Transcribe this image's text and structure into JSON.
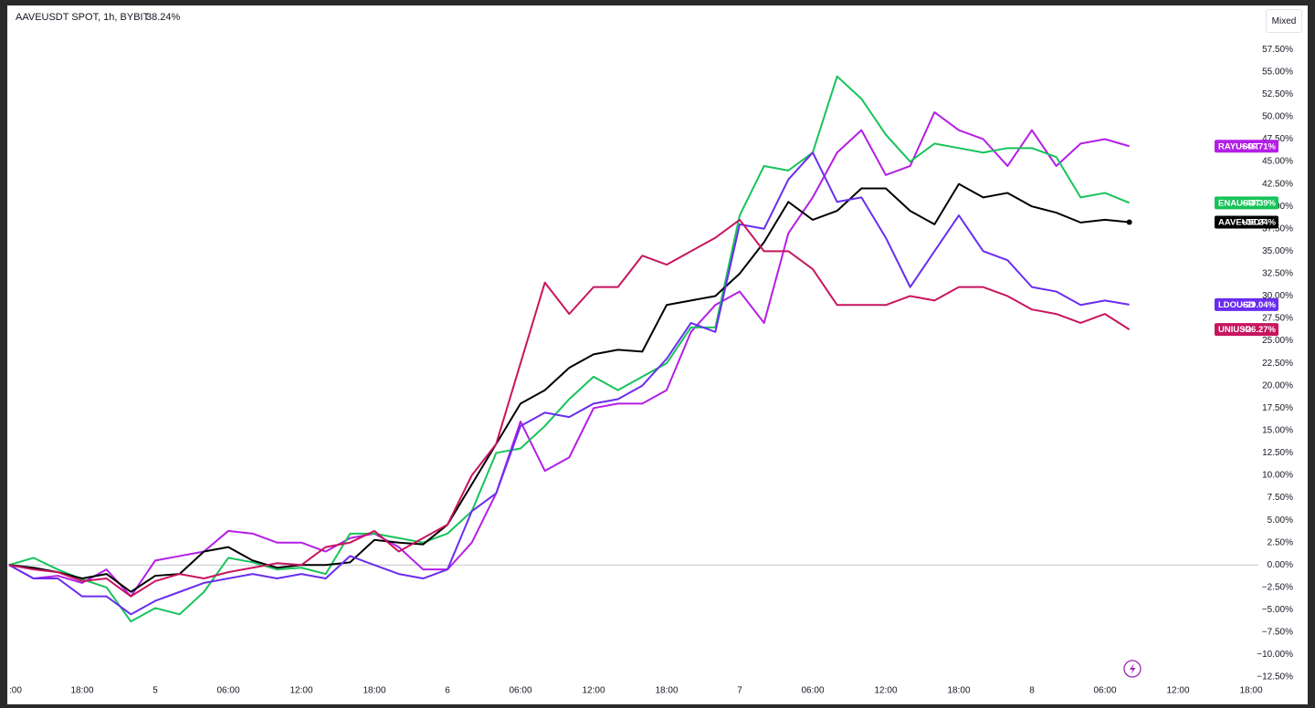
{
  "chart_data": {
    "type": "line",
    "title": "AAVEUSDT SPOT, 1h, BYBIT",
    "title_value": "38.24%",
    "mode_button": "Mixed",
    "x": [
      0,
      2,
      4,
      6,
      8,
      10,
      12,
      14,
      16,
      18,
      20,
      22,
      24,
      26,
      28,
      30,
      32,
      34,
      36,
      38,
      40,
      42,
      44,
      46,
      48,
      50,
      52,
      54,
      56,
      58,
      60,
      62,
      64,
      66,
      68,
      70,
      72,
      74,
      76,
      78,
      80,
      82,
      84,
      86,
      88,
      90,
      92
    ],
    "xlim": [
      0,
      102.6
    ],
    "xticks": [
      {
        "value": 0,
        "label": ":00"
      },
      {
        "value": 6,
        "label": "18:00"
      },
      {
        "value": 12,
        "label": "5"
      },
      {
        "value": 18,
        "label": "06:00"
      },
      {
        "value": 24,
        "label": "12:00"
      },
      {
        "value": 30,
        "label": "18:00"
      },
      {
        "value": 36,
        "label": "6"
      },
      {
        "value": 42,
        "label": "06:00"
      },
      {
        "value": 48,
        "label": "12:00"
      },
      {
        "value": 54,
        "label": "18:00"
      },
      {
        "value": 60,
        "label": "7"
      },
      {
        "value": 66,
        "label": "06:00"
      },
      {
        "value": 72,
        "label": "12:00"
      },
      {
        "value": 78,
        "label": "18:00"
      },
      {
        "value": 84,
        "label": "8"
      },
      {
        "value": 90,
        "label": "06:00"
      },
      {
        "value": 96,
        "label": "12:00"
      },
      {
        "value": 102,
        "label": "18:00"
      }
    ],
    "ylim": [
      -13.1,
      62
    ],
    "yticks": [
      {
        "value": -12.5,
        "label": "−12.50%"
      },
      {
        "value": -10,
        "label": "−10.00%"
      },
      {
        "value": -7.5,
        "label": "−7.50%"
      },
      {
        "value": -5,
        "label": "−5.00%"
      },
      {
        "value": -2.5,
        "label": "−2.50%"
      },
      {
        "value": 0,
        "label": "0.00%"
      },
      {
        "value": 2.5,
        "label": "2.50%"
      },
      {
        "value": 5,
        "label": "5.00%"
      },
      {
        "value": 7.5,
        "label": "7.50%"
      },
      {
        "value": 10,
        "label": "10.00%"
      },
      {
        "value": 12.5,
        "label": "12.50%"
      },
      {
        "value": 15,
        "label": "15.00%"
      },
      {
        "value": 17.5,
        "label": "17.50%"
      },
      {
        "value": 20,
        "label": "20.00%"
      },
      {
        "value": 22.5,
        "label": "22.50%"
      },
      {
        "value": 25,
        "label": "25.00%"
      },
      {
        "value": 27.5,
        "label": "27.50%"
      },
      {
        "value": 30,
        "label": "30.00%"
      },
      {
        "value": 32.5,
        "label": "32.50%"
      },
      {
        "value": 35,
        "label": "35.00%"
      },
      {
        "value": 37.5,
        "label": "37.50%"
      },
      {
        "value": 40,
        "label": "40.00%"
      },
      {
        "value": 42.5,
        "label": "42.50%"
      },
      {
        "value": 45,
        "label": "45.00%"
      },
      {
        "value": 47.5,
        "label": "47.50%"
      },
      {
        "value": 50,
        "label": "50.00%"
      },
      {
        "value": 52.5,
        "label": "52.50%"
      },
      {
        "value": 55,
        "label": "55.00%"
      },
      {
        "value": 57.5,
        "label": "57.50%"
      }
    ],
    "grid": false,
    "series": [
      {
        "name": "RAYUSDT",
        "color": "#b41ee6",
        "end_label": "+46.71%",
        "values": [
          0,
          -1.5,
          -1.2,
          -2,
          -0.5,
          -3.5,
          0.5,
          1,
          1.5,
          3.8,
          3.5,
          2.5,
          2.5,
          1.5,
          3,
          3.5,
          2,
          -0.5,
          -0.5,
          2.5,
          8,
          16,
          10.5,
          12,
          17.5,
          18,
          18,
          19.5,
          26,
          29,
          30.5,
          27,
          37,
          41,
          46,
          48.5,
          43.5,
          44.5,
          50.5,
          48.5,
          47.5,
          44.5,
          48.5,
          44.5,
          47,
          47.5,
          46.71
        ]
      },
      {
        "name": "ENAUSDT",
        "color": "#17c35a",
        "end_label": "+40.39%",
        "values": [
          0,
          0.8,
          -0.5,
          -1.6,
          -2.5,
          -6.3,
          -4.8,
          -5.5,
          -3,
          0.8,
          0.3,
          -0.5,
          -0.3,
          -1,
          3.5,
          3.5,
          3,
          2.5,
          3.5,
          6,
          12.5,
          13,
          15.5,
          18.5,
          21,
          19.5,
          21,
          22.5,
          26.5,
          26.5,
          39,
          44.5,
          44,
          46,
          54.5,
          52,
          48,
          45,
          47,
          46.5,
          46,
          46.5,
          46.5,
          45.5,
          41,
          41.5,
          40.39
        ]
      },
      {
        "name": "AAVEUSDT",
        "color": "#000000",
        "end_label": "+38.24%",
        "values": [
          0,
          -0.3,
          -0.8,
          -1.5,
          -1,
          -3,
          -1.2,
          -1,
          1.5,
          2,
          0.5,
          -0.3,
          0,
          0,
          0.3,
          2.8,
          2.5,
          2.3,
          4.5,
          9,
          13.5,
          18,
          19.5,
          22,
          23.5,
          24,
          23.8,
          29,
          29.5,
          30,
          32.5,
          36,
          40.5,
          38.5,
          39.5,
          42,
          42,
          39.5,
          38,
          42.5,
          41,
          41.5,
          40,
          39.3,
          38.2,
          38.5,
          38.24
        ]
      },
      {
        "name": "LDOUSD",
        "color": "#6a2df0",
        "end_label": "+29.04%",
        "values": [
          0,
          -1.5,
          -1.5,
          -3.5,
          -3.5,
          -5.5,
          -4,
          -3,
          -2,
          -1.5,
          -1,
          -1.5,
          -1,
          -1.5,
          1,
          0,
          -1,
          -1.5,
          -0.5,
          6,
          8,
          15.5,
          17,
          16.5,
          18,
          18.5,
          20,
          23,
          27,
          26,
          38,
          37.5,
          43,
          46,
          40.5,
          41,
          36.5,
          31,
          35,
          39,
          35,
          34,
          31,
          30.5,
          29,
          29.5,
          29.04
        ]
      },
      {
        "name": "UNIUSD",
        "color": "#c8155f",
        "end_label": "+26.27%",
        "values": [
          0,
          -0.5,
          -0.8,
          -1.8,
          -1.5,
          -3.5,
          -1.8,
          -1,
          -1.5,
          -0.8,
          -0.3,
          0.2,
          0,
          2,
          2.5,
          3.8,
          1.5,
          3,
          4.5,
          10,
          13.5,
          22.5,
          31.5,
          28,
          31,
          31,
          34.5,
          33.5,
          35,
          36.5,
          38.5,
          35,
          35,
          33,
          29,
          29,
          29,
          30,
          29.5,
          31,
          31,
          30,
          28.5,
          28,
          27,
          28,
          26.27
        ]
      }
    ]
  }
}
